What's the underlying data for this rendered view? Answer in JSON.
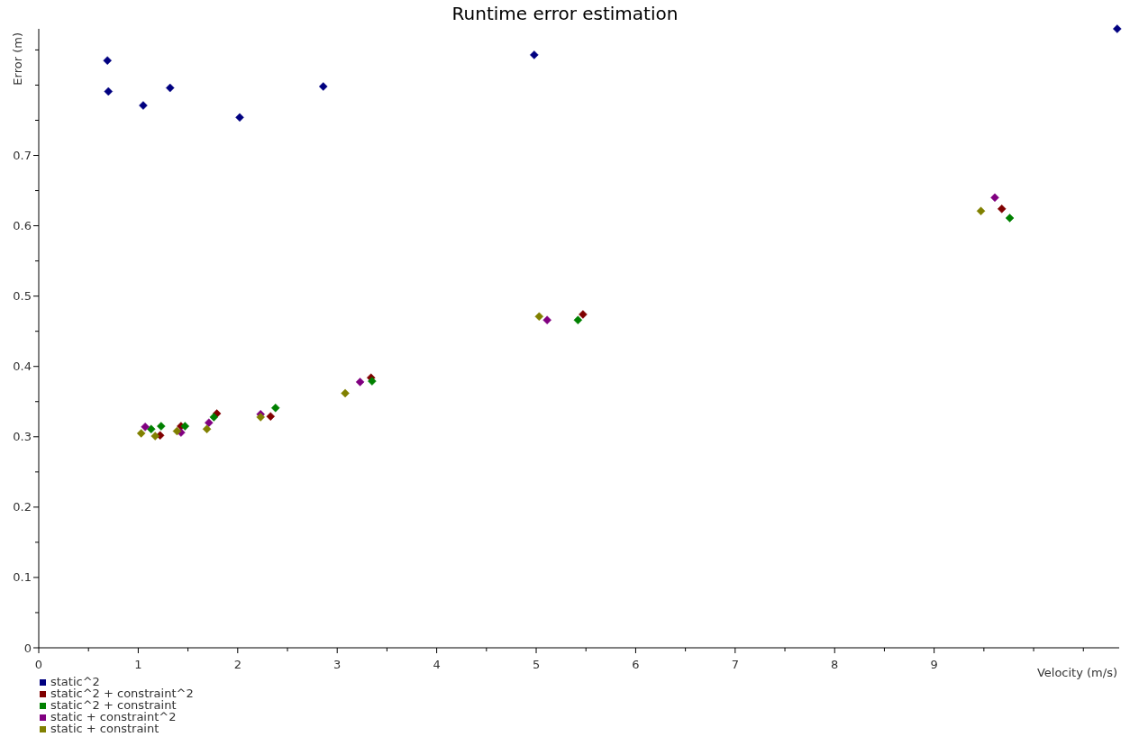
{
  "chart_data": {
    "type": "scatter",
    "title": "Runtime error estimation",
    "xlabel": "Velocity (m/s)",
    "ylabel": "Error (m)",
    "xlim": [
      0,
      10.86
    ],
    "ylim": [
      0,
      0.88
    ],
    "xticks": [
      0,
      {
        "value": 0.5,
        "label": null
      },
      1,
      {
        "value": 1.5,
        "label": null
      },
      2,
      {
        "value": 2.5,
        "label": null
      },
      3,
      {
        "value": 3.5,
        "label": null
      },
      4,
      {
        "value": 4.5,
        "label": null
      },
      5,
      {
        "value": 5.5,
        "label": null
      },
      6,
      {
        "value": 6.5,
        "label": null
      },
      7,
      {
        "value": 7.5,
        "label": null
      },
      8,
      {
        "value": 8.5,
        "label": null
      },
      9,
      {
        "value": 9.5,
        "label": null
      },
      {
        "value": 10,
        "label": null
      },
      {
        "value": 10.5,
        "label": null
      }
    ],
    "yticks": [
      0,
      {
        "value": 0.05,
        "label": null
      },
      0.1,
      {
        "value": 0.15,
        "label": null
      },
      0.2,
      {
        "value": 0.25,
        "label": null
      },
      0.3,
      {
        "value": 0.35,
        "label": null
      },
      0.4,
      {
        "value": 0.45,
        "label": null
      },
      0.5,
      {
        "value": 0.55,
        "label": null
      },
      0.6,
      {
        "value": 0.65,
        "label": null
      },
      0.7,
      {
        "value": 0.75,
        "label": null
      },
      {
        "value": 0.8,
        "label": null
      },
      {
        "value": 0.85,
        "label": null
      }
    ],
    "grid": false,
    "legend": "bottom left",
    "marker": "diamond",
    "series": [
      {
        "name": "static^2",
        "color": "#000080",
        "x": [
          0.69,
          0.7,
          1.05,
          1.32,
          2.02,
          2.86,
          4.98,
          10.84
        ],
        "values": [
          0.835,
          0.791,
          0.771,
          0.796,
          0.754,
          0.798,
          0.843,
          0.88
        ]
      },
      {
        "name": "static^2 + constraint^2",
        "color": "#800000",
        "x": [
          null,
          1.22,
          1.43,
          1.79,
          2.33,
          3.34,
          5.47,
          9.68
        ],
        "values": [
          null,
          0.302,
          0.315,
          0.333,
          0.329,
          0.384,
          0.474,
          0.624
        ]
      },
      {
        "name": "static^2 + constraint",
        "color": "#008000",
        "x": [
          1.13,
          1.23,
          1.47,
          1.76,
          2.38,
          3.35,
          5.42,
          9.76
        ],
        "values": [
          0.311,
          0.315,
          0.315,
          0.328,
          0.341,
          0.379,
          0.466,
          0.611
        ]
      },
      {
        "name": "static + constraint^2",
        "color": "#800080",
        "x": [
          1.07,
          1.43,
          1.71,
          2.23,
          3.23,
          5.11,
          9.61
        ],
        "values": [
          0.314,
          0.306,
          0.32,
          0.332,
          0.378,
          0.466,
          0.64
        ]
      },
      {
        "name": "static + constraint",
        "color": "#808000",
        "x": [
          1.03,
          1.17,
          1.39,
          1.69,
          2.23,
          3.08,
          5.03,
          9.47
        ],
        "values": [
          0.305,
          0.301,
          0.308,
          0.311,
          0.328,
          0.362,
          0.471,
          0.621
        ]
      }
    ]
  }
}
